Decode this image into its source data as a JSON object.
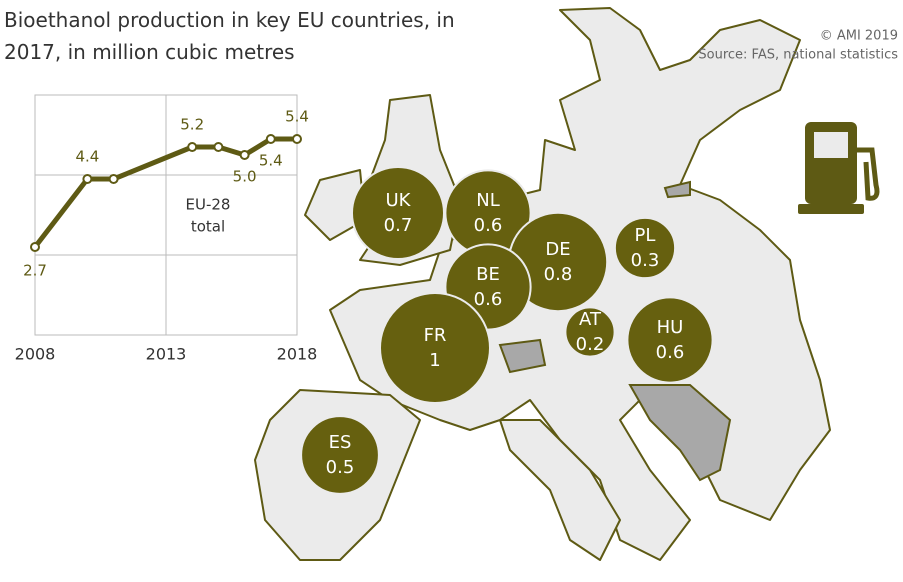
{
  "credits": [
    "© AMI 2019",
    "Source: FAS, national statistics"
  ],
  "chart_data": [
    {
      "type": "bubble",
      "title": "Bioethanol production in key EU countries, in 2017, in million cubic metres",
      "categories": [
        "UK",
        "NL",
        "DE",
        "PL",
        "BE",
        "FR",
        "AT",
        "HU",
        "ES"
      ],
      "values": [
        0.7,
        0.6,
        0.8,
        0.3,
        0.6,
        1.0,
        0.2,
        0.6,
        0.5
      ],
      "color": "#66600f"
    },
    {
      "type": "line",
      "x": [
        2008,
        2010,
        2011,
        2014,
        2015,
        2016,
        2017,
        2018
      ],
      "values": [
        2.7,
        4.4,
        4.4,
        5.2,
        5.2,
        5.0,
        5.4,
        5.4
      ],
      "value_labels": [
        "2.7",
        "4.4",
        null,
        "5.2",
        null,
        "5.0",
        "5.4",
        "5.4"
      ],
      "xlim": [
        2008,
        2018
      ],
      "xticks": [
        2008,
        2013,
        2018
      ],
      "ylim": [
        0.5,
        6.5
      ],
      "yticks": [
        0.5,
        2.5,
        4.5,
        6.5
      ],
      "annotation": [
        "EU-28",
        "total"
      ],
      "color": "#5e5a14",
      "grid": true
    }
  ]
}
